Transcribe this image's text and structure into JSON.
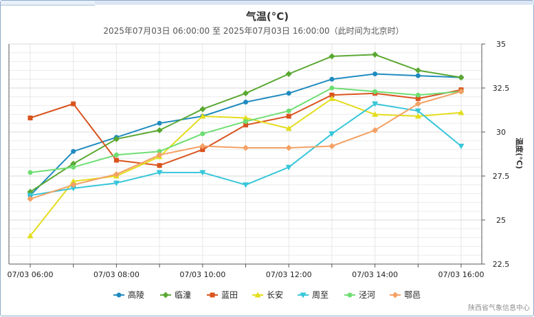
{
  "chart_data": {
    "type": "line",
    "title": "气温(°C)",
    "subtitle": "2025年07月03日 06:00:00 至 2025年07月03日 16:00:00（此时间为北京时）",
    "ylabel": "温度(°C)",
    "xlabel": "",
    "ylim": [
      22.5,
      35
    ],
    "yticks": [
      22.5,
      25,
      27.5,
      30,
      32.5,
      35
    ],
    "ytick_labels": [
      "22.5",
      "25",
      "27.5",
      "30",
      "32.5",
      "35"
    ],
    "x": [
      "07/03 06:00",
      "07/03 07:00",
      "07/03 08:00",
      "07/03 09:00",
      "07/03 10:00",
      "07/03 11:00",
      "07/03 12:00",
      "07/03 13:00",
      "07/03 14:00",
      "07/03 15:00",
      "07/03 16:00"
    ],
    "xtick_labels": [
      "07/03 06:00",
      "07/03 08:00",
      "07/03 10:00",
      "07/03 12:00",
      "07/03 14:00",
      "07/03 16:00"
    ],
    "grid": true,
    "legend_position": "bottom-center",
    "series": [
      {
        "name": "高陵",
        "color": "#1f8bbf",
        "marker": "circle",
        "values": [
          26.4,
          28.9,
          29.7,
          30.5,
          30.9,
          31.7,
          32.2,
          33.0,
          33.3,
          33.2,
          33.1
        ]
      },
      {
        "name": "临潼",
        "color": "#5aa832",
        "marker": "diamond",
        "values": [
          26.6,
          28.2,
          29.6,
          30.1,
          31.3,
          32.2,
          33.3,
          34.3,
          34.4,
          33.5,
          33.1
        ]
      },
      {
        "name": "蓝田",
        "color": "#d9541e",
        "marker": "square",
        "values": [
          30.8,
          31.6,
          28.4,
          28.1,
          29.0,
          30.4,
          30.9,
          32.1,
          32.2,
          31.9,
          32.4
        ]
      },
      {
        "name": "长安",
        "color": "#e3dd1c",
        "marker": "triangle-up",
        "values": [
          24.1,
          27.2,
          27.5,
          28.6,
          30.9,
          30.8,
          30.2,
          31.9,
          31.0,
          30.9,
          31.1
        ]
      },
      {
        "name": "周至",
        "color": "#36c6d9",
        "marker": "triangle-down",
        "values": [
          26.4,
          26.8,
          27.1,
          27.7,
          27.7,
          27.0,
          28.0,
          29.9,
          31.6,
          31.2,
          29.2
        ]
      },
      {
        "name": "泾河",
        "color": "#6ede72",
        "marker": "circle",
        "values": [
          27.7,
          28.0,
          28.7,
          28.9,
          29.9,
          30.6,
          31.2,
          32.5,
          32.3,
          32.1,
          32.3
        ]
      },
      {
        "name": "鄠邑",
        "color": "#f4a064",
        "marker": "diamond",
        "values": [
          26.2,
          27.0,
          27.6,
          28.7,
          29.2,
          29.1,
          29.1,
          29.2,
          30.1,
          31.6,
          32.3
        ]
      }
    ]
  },
  "credit": "陕西省气象信息中心"
}
